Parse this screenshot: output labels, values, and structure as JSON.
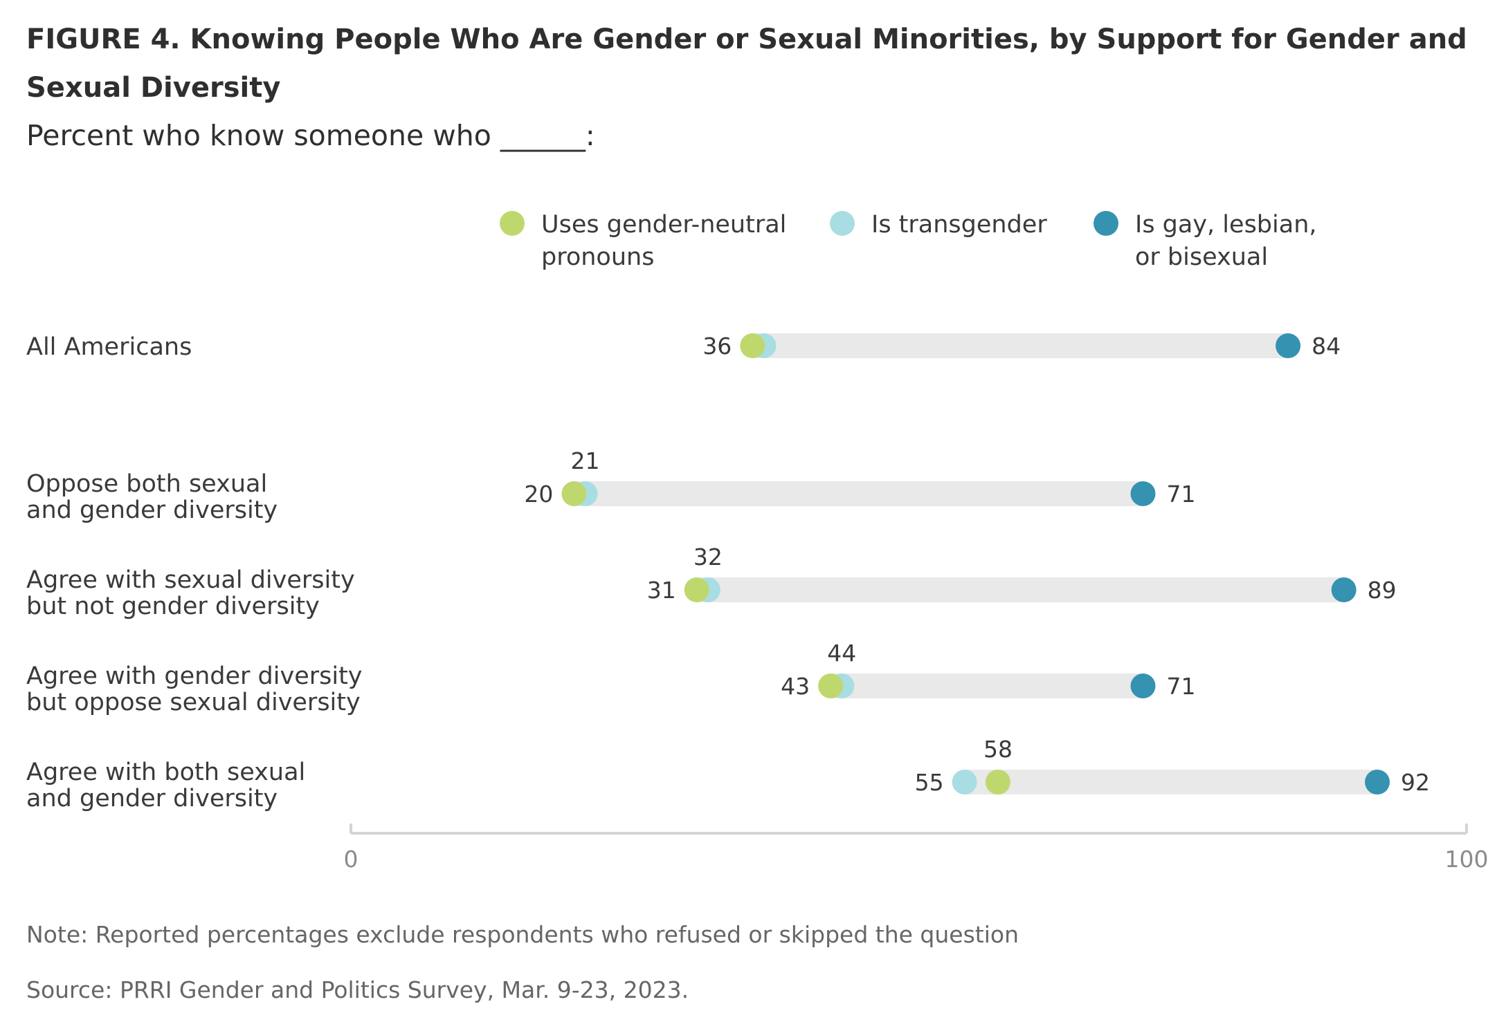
{
  "title": "FIGURE 4.  Knowing People Who Are Gender or Sexual Minorities, by Support for Gender and Sexual Diversity",
  "subtitle": "Percent who know someone who ______:",
  "note": "Note: Reported percentages exclude respondents who refused or skipped the question",
  "source": "Source: PRRI Gender and Politics Survey, Mar. 9-23, 2023.",
  "colors": {
    "neutral": "#bed86e",
    "trans": "#a8dde3",
    "lgb": "#3592b0",
    "range_bar": "#e8e9e8",
    "axis": "#d4d4d4"
  },
  "chart_data": {
    "type": "dot-range",
    "xlim": [
      0,
      100
    ],
    "x_ticks": [
      "0",
      "100"
    ],
    "legend_position": "top",
    "series": [
      {
        "key": "neutral",
        "name": "Uses gender-neutral pronouns",
        "name_lines": [
          "Uses gender-neutral",
          "pronouns"
        ]
      },
      {
        "key": "trans",
        "name": "Is transgender",
        "name_lines": [
          "Is transgender"
        ]
      },
      {
        "key": "lgb",
        "name": "Is gay, lesbian, or bisexual",
        "name_lines": [
          "Is gay, lesbian,",
          "or bisexual"
        ]
      }
    ],
    "categories": [
      {
        "label": "All Americans",
        "label_lines": [
          "All Americans"
        ],
        "neutral": 36,
        "trans": 37,
        "lgb": 84,
        "labels": {
          "low": "36",
          "high": "84"
        }
      },
      {
        "label": "Oppose both sexual and gender diversity",
        "label_lines": [
          "Oppose both sexual",
          "and gender diversity"
        ],
        "neutral": 20,
        "trans": 21,
        "lgb": 71,
        "labels": {
          "low": "20",
          "above": "21",
          "high": "71"
        }
      },
      {
        "label": "Agree with sexual diversity but not gender diversity",
        "label_lines": [
          "Agree with sexual diversity",
          "but not gender diversity"
        ],
        "neutral": 31,
        "trans": 32,
        "lgb": 89,
        "labels": {
          "low": "31",
          "above": "32",
          "high": "89"
        }
      },
      {
        "label": "Agree with gender diversity but oppose sexual diversity",
        "label_lines": [
          "Agree with gender diversity",
          "but oppose sexual diversity"
        ],
        "neutral": 43,
        "trans": 44,
        "lgb": 71,
        "labels": {
          "low": "43",
          "above": "44",
          "high": "71"
        }
      },
      {
        "label": "Agree with both sexual and gender diversity",
        "label_lines": [
          "Agree with both sexual",
          "and gender diversity"
        ],
        "neutral": 58,
        "trans": 55,
        "lgb": 92,
        "labels": {
          "low": "55",
          "above": "58",
          "high": "92"
        }
      }
    ]
  }
}
